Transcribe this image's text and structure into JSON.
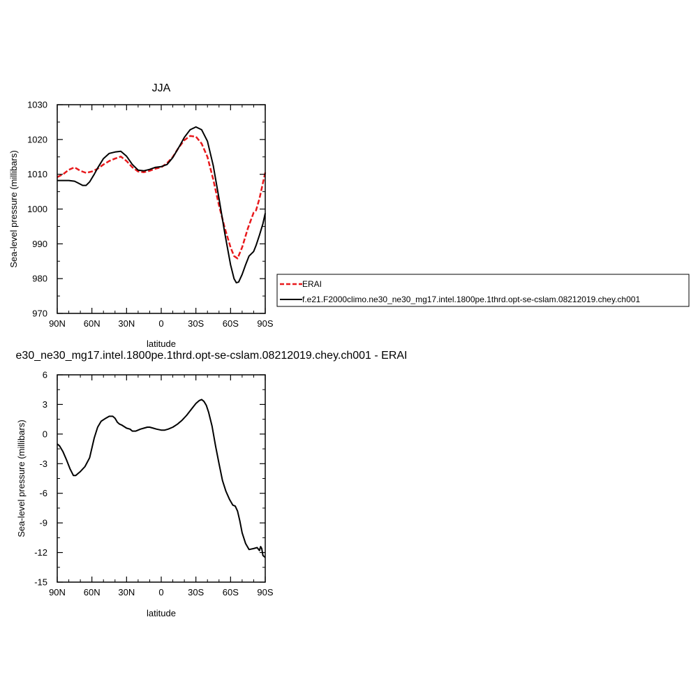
{
  "colors": {
    "erai": "#e8191c",
    "model": "#000000",
    "frame": "#000000"
  },
  "chart_data": [
    {
      "type": "line",
      "title": "JJA",
      "xlabel": "latitude",
      "ylabel": "Sea-level pressure (millibars)",
      "xlim": [
        90,
        -90
      ],
      "ylim": [
        970,
        1030
      ],
      "xticks": [
        {
          "v": 90,
          "label": "90N"
        },
        {
          "v": 60,
          "label": "60N"
        },
        {
          "v": 30,
          "label": "30N"
        },
        {
          "v": 0,
          "label": "0"
        },
        {
          "v": -30,
          "label": "30S"
        },
        {
          "v": -60,
          "label": "60S"
        },
        {
          "v": -90,
          "label": "90S"
        }
      ],
      "yticks": [
        {
          "v": 1030,
          "label": "1030"
        },
        {
          "v": 1020,
          "label": "1020"
        },
        {
          "v": 1010,
          "label": "1010"
        },
        {
          "v": 1000,
          "label": "1000"
        },
        {
          "v": 990,
          "label": "990"
        },
        {
          "v": 980,
          "label": "980"
        },
        {
          "v": 970,
          "label": "970"
        }
      ],
      "legend": {
        "position": "right",
        "entries": [
          {
            "label": "ERAI",
            "style": "dashed",
            "color": "#e8191c"
          },
          {
            "label": "f.e21.F2000climo.ne30_ne30_mg17.intel.1800pe.1thrd.opt-se-cslam.08212019.chey.ch001",
            "style": "solid",
            "color": "#000000"
          }
        ]
      },
      "series": [
        {
          "name": "ERAI",
          "style": "dashed",
          "color": "#e8191c",
          "x": [
            90,
            85,
            80,
            75,
            70,
            65,
            60,
            55,
            50,
            45,
            40,
            35,
            30,
            25,
            20,
            15,
            10,
            5,
            0,
            -5,
            -10,
            -15,
            -20,
            -25,
            -30,
            -35,
            -40,
            -45,
            -50,
            -55,
            -60,
            -63,
            -66,
            -70,
            -75,
            -80,
            -82,
            -85,
            -88,
            -90
          ],
          "y": [
            1009.2,
            1010.0,
            1011.3,
            1012.0,
            1011.0,
            1010.4,
            1010.8,
            1011.6,
            1012.8,
            1013.8,
            1014.5,
            1015.1,
            1013.8,
            1012.0,
            1010.8,
            1010.6,
            1011.0,
            1011.6,
            1012.0,
            1013.2,
            1015.0,
            1017.6,
            1019.8,
            1021.0,
            1020.8,
            1018.8,
            1015.0,
            1008.5,
            1001.0,
            994.5,
            989.0,
            986.5,
            985.8,
            989.0,
            994.5,
            999.0,
            999.6,
            1003.0,
            1007.5,
            1010.5
          ]
        },
        {
          "name": "f.e21.F2000climo.ne30_ne30_mg17.intel.1800pe.1thrd.opt-se-cslam.08212019.chey.ch001",
          "style": "solid",
          "color": "#000000",
          "x": [
            90,
            85,
            80,
            75,
            72,
            68,
            65,
            62,
            58,
            55,
            50,
            45,
            40,
            35,
            30,
            25,
            20,
            15,
            10,
            5,
            0,
            -5,
            -10,
            -15,
            -20,
            -25,
            -30,
            -35,
            -40,
            -45,
            -50,
            -55,
            -60,
            -63,
            -65,
            -67,
            -70,
            -73,
            -76,
            -80,
            -82,
            -85,
            -88,
            -90
          ],
          "y": [
            1008.2,
            1008.2,
            1008.2,
            1008.0,
            1007.5,
            1006.8,
            1006.8,
            1007.8,
            1010.0,
            1011.8,
            1014.5,
            1016.0,
            1016.4,
            1016.6,
            1015.2,
            1012.8,
            1011.2,
            1011.0,
            1011.4,
            1012.0,
            1012.2,
            1012.8,
            1014.8,
            1017.6,
            1020.6,
            1022.8,
            1023.6,
            1022.8,
            1019.5,
            1012.5,
            1003.0,
            993.0,
            984.0,
            980.0,
            978.8,
            979.0,
            981.2,
            984.0,
            986.5,
            987.8,
            989.5,
            992.5,
            995.8,
            998.8
          ]
        }
      ]
    },
    {
      "type": "line",
      "title": "e30_ne30_mg17.intel.1800pe.1thrd.opt-se-cslam.08212019.chey.ch001 - ERAI",
      "xlabel": "latitude",
      "ylabel": "Sea-level pressure (millibars)",
      "xlim": [
        90,
        -90
      ],
      "ylim": [
        -15,
        6
      ],
      "xticks": [
        {
          "v": 90,
          "label": "90N"
        },
        {
          "v": 60,
          "label": "60N"
        },
        {
          "v": 30,
          "label": "30N"
        },
        {
          "v": 0,
          "label": "0"
        },
        {
          "v": -30,
          "label": "30S"
        },
        {
          "v": -60,
          "label": "60S"
        },
        {
          "v": -90,
          "label": "90S"
        }
      ],
      "yticks": [
        {
          "v": 6,
          "label": "6"
        },
        {
          "v": 3,
          "label": "3"
        },
        {
          "v": 0,
          "label": "0"
        },
        {
          "v": -3,
          "label": "-3"
        },
        {
          "v": -6,
          "label": "-6"
        },
        {
          "v": -9,
          "label": "-9"
        },
        {
          "v": -12,
          "label": "-12"
        },
        {
          "v": -15,
          "label": "-15"
        }
      ],
      "series": [
        {
          "style": "solid",
          "color": "#000000",
          "x": [
            90,
            88,
            85,
            82,
            79,
            76,
            74,
            72,
            70,
            66,
            62,
            58,
            55,
            52,
            48,
            45,
            42,
            40,
            38,
            36,
            34,
            30,
            27,
            25,
            22,
            20,
            18,
            15,
            12,
            10,
            7,
            4,
            0,
            -3,
            -6,
            -10,
            -14,
            -18,
            -22,
            -26,
            -30,
            -33,
            -35,
            -37,
            -39,
            -41,
            -44,
            -47,
            -50,
            -53,
            -56,
            -59,
            -62,
            -64,
            -66,
            -68,
            -70,
            -73,
            -76,
            -80,
            -83,
            -85,
            -86,
            -87,
            -88,
            -89,
            -90
          ],
          "y": [
            -1.0,
            -1.2,
            -1.8,
            -2.6,
            -3.5,
            -4.2,
            -4.2,
            -4.0,
            -3.8,
            -3.3,
            -2.4,
            -0.4,
            0.7,
            1.3,
            1.6,
            1.8,
            1.8,
            1.6,
            1.2,
            1.0,
            0.9,
            0.6,
            0.5,
            0.3,
            0.3,
            0.4,
            0.5,
            0.6,
            0.7,
            0.7,
            0.6,
            0.5,
            0.4,
            0.4,
            0.5,
            0.7,
            1.0,
            1.4,
            1.9,
            2.5,
            3.1,
            3.4,
            3.5,
            3.3,
            2.9,
            2.2,
            0.8,
            -1.2,
            -3.0,
            -4.7,
            -5.8,
            -6.6,
            -7.2,
            -7.3,
            -7.8,
            -8.8,
            -10.0,
            -11.1,
            -11.7,
            -11.6,
            -11.5,
            -11.8,
            -11.4,
            -11.6,
            -12.3,
            -12.4,
            -12.5
          ]
        }
      ]
    }
  ]
}
